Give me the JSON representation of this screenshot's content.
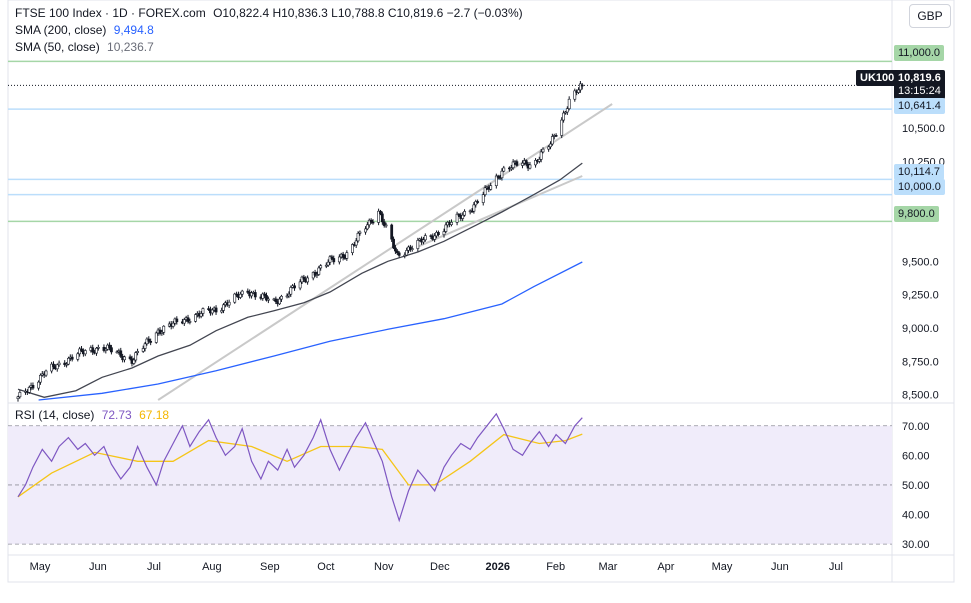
{
  "header": {
    "symbol": "FTSE 100 Index · 1D · FOREX.com",
    "ohlc": "O10,822.4  H10,836.3  L10,788.8  C10,819.6  −2.7 (−0.03%)",
    "sma200_label": "SMA (200, close)",
    "sma200_value": "9,494.8",
    "sma50_label": "SMA (50, close)",
    "sma50_value": "10,236.7",
    "rsi_label": "RSI (14, close)",
    "rsi_value": "72.73",
    "rsi_ma_value": "67.18",
    "currency_button": "GBP"
  },
  "price_labels": {
    "ticker": "UK100",
    "last_price": "10,819.6",
    "countdown": "13:15:24",
    "level_11000": "11,000.0",
    "level_10641": "10,641.4",
    "level_10114": "10,114.7",
    "level_10000": "10,000.0",
    "level_9800": "9,800.0"
  },
  "colors": {
    "candles": "#131722",
    "sma50": "#434651",
    "sma200": "#2962ff",
    "trendline": "#c9c9c9",
    "rsi": "#7e57c2",
    "rsi_ma": "#f5c518",
    "rsi_band": "#f0ecfa",
    "hline_green": "#a5d6a7",
    "hline_blue": "#bbdefb",
    "label_green": "#a5d6a7",
    "label_blue": "#bbdefb"
  },
  "chart_data": [
    {
      "type": "candlestick",
      "title": "FTSE 100 Index · 1D · FOREX.com",
      "x_range": [
        "2025-05-01",
        "2026-07-31"
      ],
      "x_ticks": [
        "May",
        "Jun",
        "Jul",
        "Aug",
        "Sep",
        "Oct",
        "Nov",
        "Dec",
        "2026",
        "Feb",
        "Mar",
        "Apr",
        "May",
        "Jun",
        "Jul"
      ],
      "y_ticks": [
        "11,000.0",
        "10,500.0",
        "10,250.0",
        "10,000.0",
        "9,800.0",
        "9,500.0",
        "9,250.0",
        "9,000.0",
        "8,750.0",
        "8,500.0"
      ],
      "ylim": [
        8460,
        11160
      ],
      "horizontal_levels": [
        11000.0,
        10641.4,
        10114.7,
        10000.0,
        9800.0
      ],
      "last": {
        "open": 10822.4,
        "high": 10836.3,
        "low": 10788.8,
        "close": 10819.6
      },
      "close_path": [
        {
          "date": "2025-05-01",
          "value": 8470
        },
        {
          "date": "2025-05-15",
          "value": 8660
        },
        {
          "date": "2025-06-01",
          "value": 8800
        },
        {
          "date": "2025-06-15",
          "value": 8860
        },
        {
          "date": "2025-07-01",
          "value": 8760
        },
        {
          "date": "2025-07-15",
          "value": 8980
        },
        {
          "date": "2025-08-01",
          "value": 9080
        },
        {
          "date": "2025-08-15",
          "value": 9140
        },
        {
          "date": "2025-09-01",
          "value": 9280
        },
        {
          "date": "2025-09-15",
          "value": 9190
        },
        {
          "date": "2025-10-01",
          "value": 9360
        },
        {
          "date": "2025-10-15",
          "value": 9500
        },
        {
          "date": "2025-10-25",
          "value": 9570
        },
        {
          "date": "2025-11-01",
          "value": 9720
        },
        {
          "date": "2025-11-10",
          "value": 9880
        },
        {
          "date": "2025-11-20",
          "value": 9540
        },
        {
          "date": "2025-11-26",
          "value": 9600
        },
        {
          "date": "2025-12-10",
          "value": 9700
        },
        {
          "date": "2025-12-20",
          "value": 9800
        },
        {
          "date": "2026-01-01",
          "value": 9930
        },
        {
          "date": "2026-01-15",
          "value": 10180
        },
        {
          "date": "2026-01-25",
          "value": 10240
        },
        {
          "date": "2026-02-01",
          "value": 10230
        },
        {
          "date": "2026-02-10",
          "value": 10380
        },
        {
          "date": "2026-02-20",
          "value": 10700
        },
        {
          "date": "2026-02-27",
          "value": 10819.6
        }
      ],
      "series": [
        {
          "name": "SMA (200, close)",
          "points": [
            {
              "date": "2025-05-12",
              "value": 8460
            },
            {
              "date": "2025-06-15",
              "value": 8510
            },
            {
              "date": "2025-07-15",
              "value": 8580
            },
            {
              "date": "2025-08-15",
              "value": 8680
            },
            {
              "date": "2025-09-15",
              "value": 8790
            },
            {
              "date": "2025-10-15",
              "value": 8900
            },
            {
              "date": "2025-11-15",
              "value": 8990
            },
            {
              "date": "2025-12-15",
              "value": 9070
            },
            {
              "date": "2026-01-15",
              "value": 9180
            },
            {
              "date": "2026-02-01",
              "value": 9310
            },
            {
              "date": "2026-02-27",
              "value": 9494.8
            }
          ]
        },
        {
          "name": "SMA (50, close)",
          "points": [
            {
              "date": "2025-05-01",
              "value": 8540
            },
            {
              "date": "2025-05-15",
              "value": 8480
            },
            {
              "date": "2025-06-01",
              "value": 8530
            },
            {
              "date": "2025-06-15",
              "value": 8630
            },
            {
              "date": "2025-07-01",
              "value": 8700
            },
            {
              "date": "2025-07-15",
              "value": 8790
            },
            {
              "date": "2025-08-01",
              "value": 8870
            },
            {
              "date": "2025-08-15",
              "value": 8980
            },
            {
              "date": "2025-09-01",
              "value": 9080
            },
            {
              "date": "2025-09-15",
              "value": 9130
            },
            {
              "date": "2025-10-01",
              "value": 9190
            },
            {
              "date": "2025-10-15",
              "value": 9270
            },
            {
              "date": "2025-11-01",
              "value": 9410
            },
            {
              "date": "2025-11-15",
              "value": 9500
            },
            {
              "date": "2025-12-01",
              "value": 9570
            },
            {
              "date": "2025-12-15",
              "value": 9650
            },
            {
              "date": "2026-01-01",
              "value": 9770
            },
            {
              "date": "2026-01-15",
              "value": 9870
            },
            {
              "date": "2026-02-01",
              "value": 10000
            },
            {
              "date": "2026-02-15",
              "value": 10110
            },
            {
              "date": "2026-02-27",
              "value": 10236.7
            }
          ]
        }
      ],
      "trendlines": [
        {
          "points": [
            {
              "date": "2025-07-15",
              "value": 8460
            },
            {
              "date": "2026-03-15",
              "value": 10680
            }
          ]
        },
        {
          "points": [
            {
              "date": "2025-12-01",
              "value": 9610
            },
            {
              "date": "2026-02-27",
              "value": 10140
            }
          ]
        }
      ]
    },
    {
      "type": "line",
      "title": "RSI (14, close)",
      "x_range": [
        "2025-05-01",
        "2026-07-31"
      ],
      "y_ticks": [
        "70.00",
        "60.00",
        "50.00",
        "40.00",
        "30.00"
      ],
      "ylim": [
        27,
        76
      ],
      "band": [
        30,
        70
      ],
      "guides": [
        70,
        50,
        30
      ],
      "series": [
        {
          "name": "RSI",
          "points": [
            {
              "date": "2025-05-01",
              "value": 46
            },
            {
              "date": "2025-05-05",
              "value": 50
            },
            {
              "date": "2025-05-09",
              "value": 56
            },
            {
              "date": "2025-05-14",
              "value": 62
            },
            {
              "date": "2025-05-19",
              "value": 58
            },
            {
              "date": "2025-05-23",
              "value": 63
            },
            {
              "date": "2025-05-28",
              "value": 66
            },
            {
              "date": "2025-06-02",
              "value": 62
            },
            {
              "date": "2025-06-06",
              "value": 64
            },
            {
              "date": "2025-06-11",
              "value": 60
            },
            {
              "date": "2025-06-16",
              "value": 63
            },
            {
              "date": "2025-06-20",
              "value": 57
            },
            {
              "date": "2025-06-25",
              "value": 52
            },
            {
              "date": "2025-06-30",
              "value": 56
            },
            {
              "date": "2025-07-04",
              "value": 63
            },
            {
              "date": "2025-07-09",
              "value": 56
            },
            {
              "date": "2025-07-14",
              "value": 50
            },
            {
              "date": "2025-07-18",
              "value": 58
            },
            {
              "date": "2025-07-23",
              "value": 64
            },
            {
              "date": "2025-07-28",
              "value": 70
            },
            {
              "date": "2025-08-01",
              "value": 63
            },
            {
              "date": "2025-08-06",
              "value": 68
            },
            {
              "date": "2025-08-11",
              "value": 72
            },
            {
              "date": "2025-08-15",
              "value": 66
            },
            {
              "date": "2025-08-20",
              "value": 60
            },
            {
              "date": "2025-08-25",
              "value": 63
            },
            {
              "date": "2025-08-29",
              "value": 69
            },
            {
              "date": "2025-09-03",
              "value": 58
            },
            {
              "date": "2025-09-08",
              "value": 52
            },
            {
              "date": "2025-09-12",
              "value": 58
            },
            {
              "date": "2025-09-17",
              "value": 55
            },
            {
              "date": "2025-09-22",
              "value": 62
            },
            {
              "date": "2025-09-26",
              "value": 56
            },
            {
              "date": "2025-10-01",
              "value": 60
            },
            {
              "date": "2025-10-06",
              "value": 66
            },
            {
              "date": "2025-10-10",
              "value": 72
            },
            {
              "date": "2025-10-15",
              "value": 62
            },
            {
              "date": "2025-10-20",
              "value": 55
            },
            {
              "date": "2025-10-24",
              "value": 60
            },
            {
              "date": "2025-10-29",
              "value": 66
            },
            {
              "date": "2025-11-03",
              "value": 71
            },
            {
              "date": "2025-11-07",
              "value": 65
            },
            {
              "date": "2025-11-12",
              "value": 58
            },
            {
              "date": "2025-11-17",
              "value": 46
            },
            {
              "date": "2025-11-21",
              "value": 38
            },
            {
              "date": "2025-11-26",
              "value": 48
            },
            {
              "date": "2025-12-01",
              "value": 55
            },
            {
              "date": "2025-12-05",
              "value": 52
            },
            {
              "date": "2025-12-10",
              "value": 48
            },
            {
              "date": "2025-12-15",
              "value": 56
            },
            {
              "date": "2025-12-19",
              "value": 60
            },
            {
              "date": "2025-12-24",
              "value": 64
            },
            {
              "date": "2025-12-29",
              "value": 62
            },
            {
              "date": "2026-01-02",
              "value": 66
            },
            {
              "date": "2026-01-07",
              "value": 70
            },
            {
              "date": "2026-01-12",
              "value": 74
            },
            {
              "date": "2026-01-16",
              "value": 69
            },
            {
              "date": "2026-01-21",
              "value": 62
            },
            {
              "date": "2026-01-26",
              "value": 60
            },
            {
              "date": "2026-01-30",
              "value": 64
            },
            {
              "date": "2026-02-04",
              "value": 68
            },
            {
              "date": "2026-02-09",
              "value": 63
            },
            {
              "date": "2026-02-13",
              "value": 67
            },
            {
              "date": "2026-02-18",
              "value": 64
            },
            {
              "date": "2026-02-23",
              "value": 70
            },
            {
              "date": "2026-02-27",
              "value": 72.73
            }
          ]
        },
        {
          "name": "RSI-based MA",
          "points": [
            {
              "date": "2025-05-01",
              "value": 46
            },
            {
              "date": "2025-05-19",
              "value": 54
            },
            {
              "date": "2025-06-11",
              "value": 61
            },
            {
              "date": "2025-07-04",
              "value": 58
            },
            {
              "date": "2025-07-23",
              "value": 58
            },
            {
              "date": "2025-08-11",
              "value": 65
            },
            {
              "date": "2025-09-03",
              "value": 63
            },
            {
              "date": "2025-09-22",
              "value": 58
            },
            {
              "date": "2025-10-10",
              "value": 63
            },
            {
              "date": "2025-10-29",
              "value": 63
            },
            {
              "date": "2025-11-12",
              "value": 62
            },
            {
              "date": "2025-11-26",
              "value": 50
            },
            {
              "date": "2025-12-10",
              "value": 50
            },
            {
              "date": "2025-12-29",
              "value": 58
            },
            {
              "date": "2026-01-16",
              "value": 67
            },
            {
              "date": "2026-02-04",
              "value": 64
            },
            {
              "date": "2026-02-18",
              "value": 65
            },
            {
              "date": "2026-02-27",
              "value": 67.18
            }
          ]
        }
      ]
    }
  ]
}
